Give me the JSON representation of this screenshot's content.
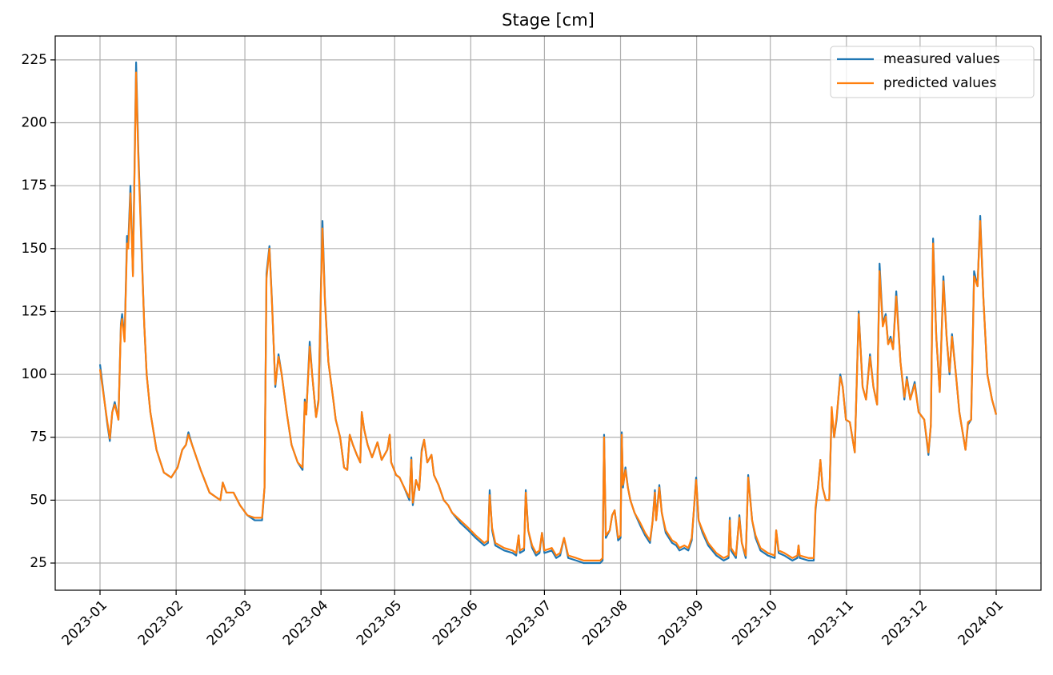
{
  "chart_data": {
    "type": "line",
    "title": "Stage [cm]",
    "x": [
      0,
      3,
      4,
      5,
      6,
      7.5,
      8.5,
      9,
      10,
      11,
      11.5,
      12.4,
      13.4,
      14.7,
      15.6,
      16.6,
      18,
      19,
      20.5,
      23,
      26,
      29,
      31.6,
      33.5,
      35,
      36,
      37.5,
      41,
      44.6,
      49,
      50,
      51.5,
      54.4,
      57,
      60,
      63,
      66,
      67,
      67.8,
      69,
      70,
      71.4,
      72.7,
      74,
      76,
      78,
      80.5,
      82.5,
      83.4,
      84,
      85.4,
      86.4,
      88,
      89,
      90,
      90.6,
      91.6,
      93,
      95,
      96,
      97.8,
      99.4,
      100.7,
      101.7,
      103,
      104.6,
      106,
      106.6,
      107.6,
      109,
      110.8,
      113,
      114.7,
      117,
      118,
      118.6,
      120.6,
      122,
      123.9,
      126,
      126.8,
      127.4,
      128.7,
      130,
      131,
      132,
      133.3,
      135,
      136,
      137.9,
      140,
      141.8,
      143.4,
      146.7,
      150,
      153,
      156.5,
      158,
      158.7,
      159.7,
      161,
      164.6,
      168,
      169.5,
      170.5,
      171,
      172.7,
      173.4,
      174.4,
      176,
      177.6,
      179,
      180,
      181,
      184,
      185.8,
      187.4,
      189,
      190.7,
      194,
      197,
      200,
      203.7,
      204.7,
      205.3,
      206,
      207.6,
      208.6,
      209.6,
      211,
      212,
      212.5,
      213,
      214,
      215,
      216,
      217.7,
      220,
      222,
      224,
      225,
      226,
      226.5,
      227.8,
      228.8,
      230.4,
      233,
      234.7,
      236,
      238,
      239.6,
      241,
      242.8,
      243.8,
      245.4,
      247.7,
      251,
      254,
      256,
      256.5,
      257,
      259,
      260.4,
      261.4,
      263,
      264,
      265.6,
      267,
      269,
      272,
      274.8,
      275.4,
      276.4,
      278.7,
      282,
      284,
      284.5,
      285,
      288.5,
      290.7,
      291.4,
      292.4,
      293.4,
      294.3,
      295.6,
      297,
      298,
      299,
      300,
      301.5,
      302.5,
      303.8,
      305.4,
      307.4,
      309,
      310.6,
      312,
      313.6,
      315,
      316.5,
      317.5,
      318.8,
      320,
      321,
      322,
      323,
      324.3,
      326,
      327.6,
      328.6,
      330,
      331.8,
      333.4,
      335.7,
      337.4,
      338.4,
      339.3,
      340.6,
      342,
      343.5,
      344.8,
      346,
      347,
      348.6,
      350,
      352.5,
      353.5,
      354.8,
      356,
      357.4,
      358.5,
      359.8,
      361.4,
      363.3,
      365
    ],
    "series": [
      {
        "name": "measured values",
        "color": "#1f77b4",
        "values": [
          104,
          80,
          73.5,
          85,
          89,
          82,
          120,
          124,
          114,
          155,
          152,
          175,
          140,
          224,
          189,
          160,
          120,
          100,
          85,
          70,
          61,
          59,
          63,
          70,
          72,
          77,
          72,
          62,
          53,
          50,
          57,
          53,
          53,
          48,
          44,
          42,
          42,
          55,
          140,
          151,
          130,
          95,
          108,
          100,
          85,
          72,
          65,
          62,
          90,
          84,
          113,
          100,
          83,
          90,
          136,
          161,
          130,
          105,
          90,
          82,
          75,
          63,
          62,
          76,
          72,
          68,
          65,
          85,
          78,
          72,
          67,
          73,
          66,
          70,
          76,
          65,
          60,
          59,
          55,
          50,
          67,
          48,
          58,
          54,
          70,
          74,
          65,
          68,
          60,
          56,
          50,
          48,
          45,
          41,
          38,
          35,
          32,
          33,
          54,
          38,
          32,
          30,
          29,
          28,
          36,
          29,
          30,
          54,
          38,
          31,
          28,
          29,
          37,
          29,
          30,
          27,
          28,
          35,
          27,
          26,
          25,
          25,
          25,
          26,
          76,
          35,
          38,
          44,
          46,
          34,
          35,
          77,
          55,
          63,
          55,
          50,
          45,
          40,
          36,
          33,
          41,
          54,
          42,
          56,
          45,
          37,
          33,
          32,
          30,
          31,
          30,
          34,
          59,
          42,
          37,
          32,
          28,
          26,
          27,
          43,
          30,
          27,
          44,
          33,
          27,
          60,
          42,
          35,
          30,
          28,
          27,
          38,
          29,
          28,
          26,
          27,
          32,
          27,
          26,
          26,
          46,
          55,
          66,
          55,
          50,
          50,
          85,
          75,
          82,
          100,
          95,
          82,
          81,
          69,
          125,
          95,
          90,
          108,
          95,
          88,
          144,
          120,
          124,
          112,
          115,
          110,
          133,
          105,
          90,
          99,
          90,
          97,
          85,
          82,
          68,
          80,
          154,
          115,
          93,
          139,
          115,
          100,
          116,
          100,
          85,
          70,
          80,
          82,
          141,
          135,
          163,
          130,
          100,
          90,
          84
        ]
      },
      {
        "name": "predicted values",
        "color": "#ff7f0e",
        "values": [
          102,
          81,
          74.5,
          85,
          88,
          82,
          119,
          122,
          113,
          152,
          150,
          172,
          139,
          220,
          186,
          158,
          120,
          100,
          85,
          70,
          61,
          59,
          63,
          70,
          72,
          76,
          72,
          62,
          53,
          50,
          57,
          53,
          53,
          48,
          44,
          43,
          43,
          55,
          138,
          150,
          129,
          96,
          107,
          100,
          85,
          72,
          65,
          63,
          89,
          84,
          111,
          100,
          83,
          89,
          134,
          158,
          129,
          105,
          90,
          82,
          75,
          63,
          62,
          76,
          72,
          68,
          65,
          85,
          78,
          72,
          67,
          73,
          66,
          70,
          76,
          65,
          60,
          59,
          55,
          51,
          66,
          49,
          58,
          54,
          69,
          74,
          65,
          68,
          60,
          56,
          50,
          48,
          45,
          42,
          39,
          36,
          33,
          34,
          52,
          39,
          33,
          31,
          30,
          29,
          36,
          30,
          31,
          53,
          38,
          32,
          29,
          30,
          37,
          30,
          31,
          28,
          29,
          35,
          28,
          27,
          26,
          26,
          26,
          27,
          75,
          36,
          38,
          44,
          46,
          35,
          36,
          76,
          56,
          62,
          55,
          50,
          45,
          41,
          37,
          34,
          41,
          53,
          42,
          55,
          45,
          38,
          34,
          33,
          31,
          32,
          31,
          35,
          58,
          42,
          38,
          33,
          29,
          27,
          28,
          42,
          31,
          28,
          43,
          33,
          28,
          59,
          42,
          36,
          31,
          29,
          28,
          38,
          30,
          29,
          27,
          28,
          32,
          28,
          27,
          27,
          47,
          55,
          66,
          55,
          50,
          50,
          87,
          75,
          83,
          99,
          95,
          82,
          81,
          69,
          124,
          95,
          90,
          107,
          95,
          88,
          141,
          119,
          123,
          112,
          114,
          110,
          131,
          105,
          91,
          98,
          90,
          96,
          85,
          82,
          69,
          80,
          152,
          115,
          93,
          137,
          115,
          101,
          115,
          100,
          85,
          70,
          81,
          82,
          139,
          135,
          161,
          130,
          100,
          90,
          84
        ]
      }
    ],
    "xlim": [
      -18.25,
      383.25
    ],
    "xticks": [
      {
        "value": 0,
        "label": "2023-01"
      },
      {
        "value": 31,
        "label": "2023-02"
      },
      {
        "value": 59,
        "label": "2023-03"
      },
      {
        "value": 90,
        "label": "2023-04"
      },
      {
        "value": 120,
        "label": "2023-05"
      },
      {
        "value": 151,
        "label": "2023-06"
      },
      {
        "value": 181,
        "label": "2023-07"
      },
      {
        "value": 212,
        "label": "2023-08"
      },
      {
        "value": 243,
        "label": "2023-09"
      },
      {
        "value": 273,
        "label": "2023-10"
      },
      {
        "value": 304,
        "label": "2023-11"
      },
      {
        "value": 334,
        "label": "2023-12"
      },
      {
        "value": 365,
        "label": "2024-01"
      }
    ],
    "ylim": [
      14.2,
      234.5
    ],
    "yticks": [
      25,
      50,
      75,
      100,
      125,
      150,
      175,
      200,
      225
    ],
    "grid": true,
    "legend": "upper-right"
  }
}
